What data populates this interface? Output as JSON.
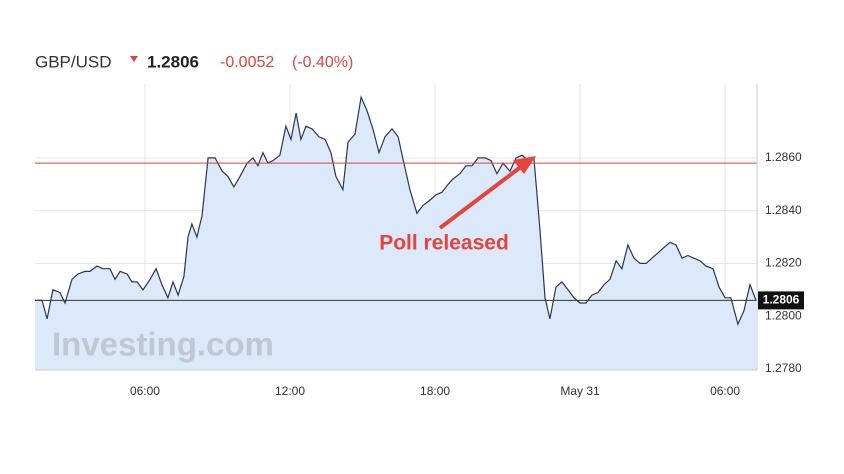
{
  "chart_data": {
    "type": "area",
    "header": {
      "symbol": "GBP/USD",
      "change": -0.0052,
      "change_pct": "(-0.40%)"
    },
    "watermark": "Investing.com",
    "annotation": "Poll released",
    "last_price": 1.2806,
    "reference_line": 1.2858,
    "xlim": [
      1.45,
      31.32
    ],
    "ylim": [
      1.278,
      1.2888
    ],
    "xticks": [
      {
        "value": 6,
        "label": "06:00"
      },
      {
        "value": 12,
        "label": "12:00"
      },
      {
        "value": 18,
        "label": "18:00"
      },
      {
        "value": 24,
        "label": "May 31"
      },
      {
        "value": 30,
        "label": "06:00"
      }
    ],
    "yticks": [
      {
        "value": 1.278,
        "label": "1.2780"
      },
      {
        "value": 1.28,
        "label": "1.2800"
      },
      {
        "value": 1.282,
        "label": "1.2820"
      },
      {
        "value": 1.284,
        "label": "1.2840"
      },
      {
        "value": 1.286,
        "label": "1.2860"
      }
    ],
    "grid": true,
    "x": [
      1.45,
      1.74,
      1.95,
      2.19,
      2.48,
      2.69,
      2.98,
      3.23,
      3.52,
      3.72,
      4.01,
      4.26,
      4.55,
      4.76,
      4.97,
      5.26,
      5.46,
      5.67,
      5.92,
      6.21,
      6.46,
      6.7,
      6.95,
      7.16,
      7.37,
      7.61,
      7.78,
      7.94,
      8.15,
      8.36,
      8.61,
      8.9,
      9.19,
      9.43,
      9.68,
      9.93,
      10.22,
      10.47,
      10.67,
      10.88,
      11.09,
      11.3,
      11.58,
      11.83,
      12.04,
      12.25,
      12.45,
      12.66,
      12.91,
      13.2,
      13.45,
      13.69,
      13.9,
      14.19,
      14.4,
      14.69,
      14.94,
      15.18,
      15.43,
      15.68,
      15.93,
      16.22,
      16.47,
      16.71,
      16.96,
      17.25,
      17.5,
      17.79,
      18.04,
      18.29,
      18.54,
      18.74,
      19.03,
      19.28,
      19.53,
      19.78,
      20.07,
      20.31,
      20.56,
      20.81,
      21.1,
      21.35,
      21.6,
      21.84,
      22.09,
      22.34,
      22.55,
      22.75,
      23.0,
      23.25,
      23.5,
      23.75,
      24.0,
      24.24,
      24.49,
      24.74,
      24.99,
      25.24,
      25.49,
      25.73,
      25.98,
      26.23,
      26.48,
      26.73,
      26.97,
      27.22,
      27.47,
      27.72,
      27.97,
      28.22,
      28.46,
      28.71,
      28.96,
      29.21,
      29.5,
      29.75,
      30.0,
      30.24,
      30.53,
      30.78,
      31.03,
      31.28
    ],
    "series": [
      {
        "name": "GBP/USD",
        "color": "#2b3650",
        "fill": "#dce9fb",
        "values": [
          1.2806,
          1.2806,
          1.2799,
          1.281,
          1.2809,
          1.2805,
          1.2814,
          1.2816,
          1.2817,
          1.2817,
          1.2819,
          1.2818,
          1.2818,
          1.2814,
          1.2817,
          1.2816,
          1.2813,
          1.2813,
          1.281,
          1.2814,
          1.2818,
          1.2812,
          1.2807,
          1.2813,
          1.2808,
          1.2815,
          1.283,
          1.2835,
          1.283,
          1.2838,
          1.286,
          1.286,
          1.2855,
          1.2853,
          1.2849,
          1.2853,
          1.2858,
          1.286,
          1.2857,
          1.2862,
          1.2858,
          1.2859,
          1.2861,
          1.2872,
          1.2867,
          1.2877,
          1.2867,
          1.2872,
          1.2871,
          1.2868,
          1.2867,
          1.2862,
          1.2853,
          1.2848,
          1.2866,
          1.2869,
          1.2883,
          1.2878,
          1.2871,
          1.2862,
          1.2868,
          1.2871,
          1.2868,
          1.2858,
          1.2848,
          1.2839,
          1.2842,
          1.2844,
          1.2846,
          1.2847,
          1.285,
          1.2852,
          1.2854,
          1.2857,
          1.2857,
          1.286,
          1.286,
          1.2859,
          1.2854,
          1.2858,
          1.2855,
          1.286,
          1.2861,
          1.2859,
          1.286,
          1.2833,
          1.2807,
          1.2799,
          1.2811,
          1.2813,
          1.281,
          1.2807,
          1.2805,
          1.2805,
          1.2808,
          1.2809,
          1.2812,
          1.2814,
          1.2821,
          1.2818,
          1.2827,
          1.2822,
          1.282,
          1.282,
          1.2822,
          1.2824,
          1.2826,
          1.2828,
          1.2827,
          1.2822,
          1.2823,
          1.2822,
          1.2821,
          1.2819,
          1.2818,
          1.2811,
          1.2807,
          1.2807,
          1.2797,
          1.2802,
          1.2812,
          1.2806
        ]
      }
    ]
  }
}
